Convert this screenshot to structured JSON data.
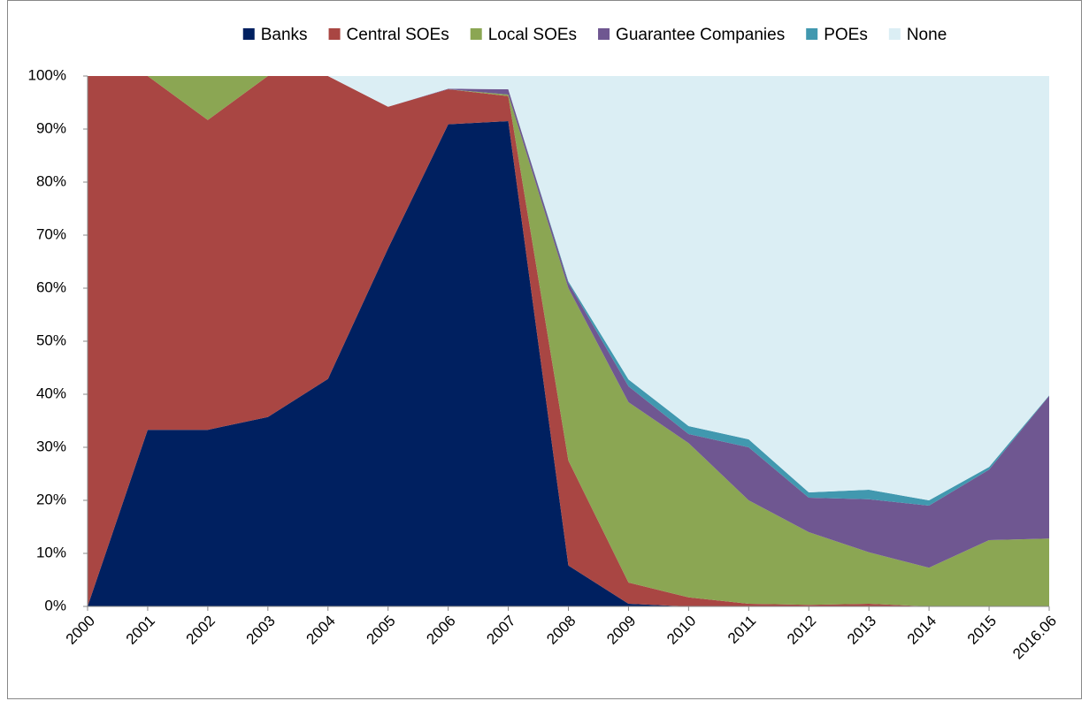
{
  "chart_data": {
    "type": "stacked_area",
    "categories": [
      "2000",
      "2001",
      "2002",
      "2003",
      "2004",
      "2005",
      "2006",
      "2007",
      "2008",
      "2009",
      "2010",
      "2011",
      "2012",
      "2013",
      "2014",
      "2015",
      "2016.06"
    ],
    "series": [
      {
        "name": "Banks",
        "color": "#002060",
        "values": [
          0,
          33.3,
          33.3,
          35.7,
          42.9,
          67.5,
          90.9,
          91.5,
          7.7,
          0.5,
          0,
          0,
          0,
          0,
          0,
          0,
          0
        ]
      },
      {
        "name": "Central SOEs",
        "color": "#a94643",
        "values": [
          100,
          66.7,
          58.4,
          64.3,
          57.1,
          26.7,
          6.6,
          4.7,
          19.8,
          4.0,
          1.7,
          0.5,
          0.3,
          0.5,
          0,
          0,
          0
        ]
      },
      {
        "name": "Local SOEs",
        "color": "#8ba653",
        "values": [
          0,
          0,
          8.3,
          0,
          0,
          0,
          0,
          0.3,
          32.5,
          34.0,
          29.1,
          19.5,
          13.7,
          9.7,
          7.3,
          12.5,
          12.8
        ]
      },
      {
        "name": "Guarantee Companies",
        "color": "#6f5791",
        "values": [
          0,
          0,
          0,
          0,
          0,
          0,
          0.1,
          1.0,
          1.0,
          3.0,
          1.7,
          10.0,
          6.5,
          10.0,
          11.7,
          13.3,
          26.9
        ]
      },
      {
        "name": "POEs",
        "color": "#4198af",
        "values": [
          0,
          0,
          0,
          0,
          0,
          0,
          0,
          0,
          0.3,
          1.3,
          1.5,
          1.5,
          1.0,
          1.8,
          1.0,
          0.5,
          0.1
        ]
      },
      {
        "name": "None",
        "color": "#dbeef4",
        "values": [
          0,
          0,
          0,
          0,
          0,
          5.8,
          2.4,
          2.5,
          38.7,
          57.2,
          66.0,
          68.5,
          78.5,
          78.0,
          80.0,
          73.7,
          60.2
        ]
      }
    ],
    "ylim": [
      0,
      100
    ],
    "yticks": [
      {
        "value": 0,
        "label": "0%"
      },
      {
        "value": 10,
        "label": "10%"
      },
      {
        "value": 20,
        "label": "20%"
      },
      {
        "value": 30,
        "label": "30%"
      },
      {
        "value": 40,
        "label": "40%"
      },
      {
        "value": 50,
        "label": "50%"
      },
      {
        "value": 60,
        "label": "60%"
      },
      {
        "value": 70,
        "label": "70%"
      },
      {
        "value": 80,
        "label": "80%"
      },
      {
        "value": 90,
        "label": "90%"
      },
      {
        "value": 100,
        "label": "100%"
      }
    ],
    "legend": "top"
  }
}
